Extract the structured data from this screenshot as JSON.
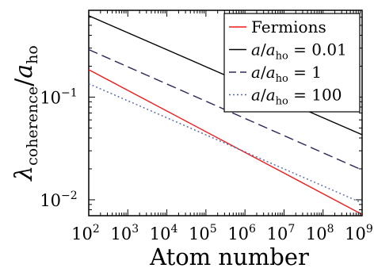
{
  "chart_data": {
    "type": "line",
    "xscale": "log",
    "yscale": "log",
    "xlim": [
      100,
      1000000000
    ],
    "ylim": [
      0.007,
      0.7
    ],
    "xlabel": "Atom number",
    "ylabel": {
      "main": "λ",
      "sub": "coherence",
      "slash": "/",
      "denom": "a",
      "denom_sub": "ho"
    },
    "x_ticks": [
      {
        "value": 100,
        "base": "10",
        "exp": "2"
      },
      {
        "value": 1000,
        "base": "10",
        "exp": "3"
      },
      {
        "value": 10000,
        "base": "10",
        "exp": "4"
      },
      {
        "value": 100000,
        "base": "10",
        "exp": "5"
      },
      {
        "value": 1000000,
        "base": "10",
        "exp": "6"
      },
      {
        "value": 10000000,
        "base": "10",
        "exp": "7"
      },
      {
        "value": 100000000,
        "base": "10",
        "exp": "8"
      },
      {
        "value": 1000000000,
        "base": "10",
        "exp": "9"
      }
    ],
    "y_ticks": [
      {
        "value": 0.01,
        "base": "10",
        "exp": "−2"
      },
      {
        "value": 0.1,
        "base": "10",
        "exp": "−1"
      }
    ],
    "legend_position": "top-right",
    "series": [
      {
        "name": "Fermions",
        "color": "#ee1c1c",
        "dash": "solid",
        "x": [
          100,
          1000000000
        ],
        "y": [
          0.185,
          0.0072
        ]
      },
      {
        "name_parts": [
          "a",
          "/",
          "a",
          "ho",
          " = 0.01"
        ],
        "color": "#000000",
        "dash": "solid",
        "x": [
          100,
          1000000000
        ],
        "y": [
          0.62,
          0.043
        ]
      },
      {
        "name_parts": [
          "a",
          "/",
          "a",
          "ho",
          " = 1"
        ],
        "color": "#2b2b5a",
        "dash": "dashed",
        "x": [
          100,
          1000000000
        ],
        "y": [
          0.29,
          0.0195
        ]
      },
      {
        "name_parts": [
          "a",
          "/",
          "a",
          "ho",
          " = 100"
        ],
        "color": "#5567a8",
        "dash": "dotted",
        "x": [
          100,
          1000000000
        ],
        "y": [
          0.135,
          0.0093
        ]
      }
    ]
  }
}
